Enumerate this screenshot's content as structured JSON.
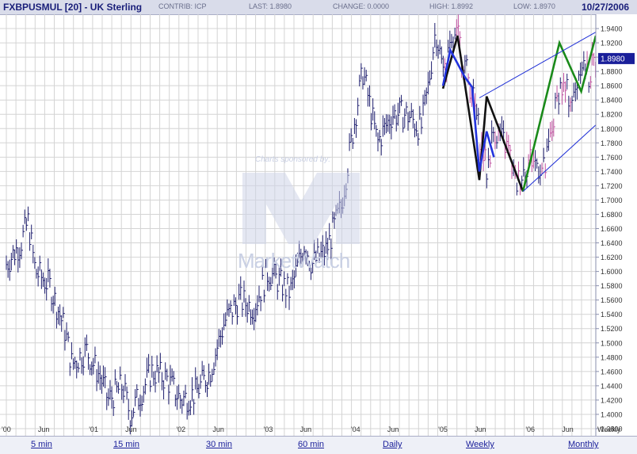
{
  "header": {
    "symbol": "FXBPUSMUL [20] - UK Sterling",
    "contrib": "CONTRIB: ICP",
    "last": "LAST: 1.8980",
    "change": "CHANGE: 0.0000",
    "high": "HIGH: 1.8992",
    "low": "LOW: 1.8970",
    "date": "10/27/2006"
  },
  "watermark": {
    "sponsor_text": "Charts sponsored by:",
    "brand_text": "MarketWatch"
  },
  "footer": {
    "links": [
      "5 min",
      "15 min",
      "30 min",
      "60 min",
      "Daily",
      "Weekly",
      "Monthly"
    ],
    "interval_label": "Weekly"
  },
  "colors": {
    "price_bars": "#1e1e6e",
    "grid": "#d4d4d4",
    "channel": "#1a2bd6",
    "current_price_box": "#1a1f9a",
    "pattern_black": "#111111",
    "pattern_blue": "#2233dd",
    "pattern_pink": "#c050a0",
    "pattern_green": "#1a8a1a"
  },
  "chart_data": {
    "type": "ohlc-bar",
    "title": "FXBPUSMUL [20] - UK Sterling",
    "frequency": "Weekly",
    "ylim": [
      1.37,
      1.96
    ],
    "y_ticks": [
      "1.9400",
      "1.9200",
      "1.9000",
      "1.8800",
      "1.8600",
      "1.8400",
      "1.8200",
      "1.8000",
      "1.7800",
      "1.7600",
      "1.7400",
      "1.7200",
      "1.7000",
      "1.6800",
      "1.6600",
      "1.6400",
      "1.6200",
      "1.6000",
      "1.5800",
      "1.5600",
      "1.5400",
      "1.5200",
      "1.5000",
      "1.4800",
      "1.4600",
      "1.4400",
      "1.4200",
      "1.4000",
      "1.3800"
    ],
    "x_ticks": [
      "'00",
      "Jun",
      "'01",
      "Jun",
      "'02",
      "Jun",
      "'03",
      "Jun",
      "'04",
      "Jun",
      "'05",
      "Jun",
      "'06",
      "Jun"
    ],
    "current_value": "1.8980",
    "price_path": [
      [
        "2000-01",
        1.61
      ],
      [
        "2000-03",
        1.64
      ],
      [
        "2000-04",
        1.67
      ],
      [
        "2000-05",
        1.6
      ],
      [
        "2000-07",
        1.58
      ],
      [
        "2000-09",
        1.52
      ],
      [
        "2000-10",
        1.47
      ],
      [
        "2000-12",
        1.49
      ],
      [
        "2001-02",
        1.45
      ],
      [
        "2001-03",
        1.42
      ],
      [
        "2001-05",
        1.44
      ],
      [
        "2001-06",
        1.4
      ],
      [
        "2001-07",
        1.42
      ],
      [
        "2001-09",
        1.46
      ],
      [
        "2001-11",
        1.45
      ],
      [
        "2002-01",
        1.42
      ],
      [
        "2002-03",
        1.43
      ],
      [
        "2002-05",
        1.46
      ],
      [
        "2002-07",
        1.53
      ],
      [
        "2002-09",
        1.56
      ],
      [
        "2002-11",
        1.55
      ],
      [
        "2003-01",
        1.6
      ],
      [
        "2003-03",
        1.58
      ],
      [
        "2003-04",
        1.57
      ],
      [
        "2003-06",
        1.64
      ],
      [
        "2003-07",
        1.61
      ],
      [
        "2003-09",
        1.63
      ],
      [
        "2003-11",
        1.69
      ],
      [
        "2004-01",
        1.82
      ],
      [
        "2004-02",
        1.88
      ],
      [
        "2004-04",
        1.78
      ],
      [
        "2004-06",
        1.82
      ],
      [
        "2004-08",
        1.82
      ],
      [
        "2004-10",
        1.8
      ],
      [
        "2004-11",
        1.86
      ],
      [
        "2004-12",
        1.94
      ],
      [
        "2005-01",
        1.88
      ],
      [
        "2005-03",
        1.93
      ],
      [
        "2005-05",
        1.85
      ],
      [
        "2005-07",
        1.74
      ],
      [
        "2005-08",
        1.8
      ],
      [
        "2005-10",
        1.77
      ],
      [
        "2005-11",
        1.72
      ],
      [
        "2006-01",
        1.76
      ],
      [
        "2006-03",
        1.74
      ],
      [
        "2006-05",
        1.86
      ],
      [
        "2006-07",
        1.84
      ],
      [
        "2006-08",
        1.9
      ],
      [
        "2006-09",
        1.87
      ],
      [
        "2006-10",
        1.9
      ]
    ],
    "trend_channel": {
      "upper": [
        [
          "2005-06",
          1.843
        ],
        [
          "2006-10",
          1.935
        ]
      ],
      "lower": [
        [
          "2005-12",
          1.712
        ],
        [
          "2006-10",
          1.805
        ]
      ]
    },
    "pattern_lines": [
      {
        "color": "black",
        "points": [
          [
            "2005-01",
            1.856
          ],
          [
            "2005-03",
            1.93
          ],
          [
            "2005-06",
            1.728
          ],
          [
            "2005-07",
            1.845
          ],
          [
            "2005-12",
            1.712
          ]
        ]
      },
      {
        "color": "blue",
        "points": [
          [
            "2005-01",
            1.86
          ],
          [
            "2005-02",
            1.91
          ],
          [
            "2005-04",
            1.872
          ],
          [
            "2005-05",
            1.858
          ],
          [
            "2005-06",
            1.74
          ],
          [
            "2005-07",
            1.796
          ],
          [
            "2005-08",
            1.76
          ]
        ]
      },
      {
        "color": "green",
        "points": [
          [
            "2005-12",
            1.712
          ],
          [
            "2006-05",
            1.92
          ],
          [
            "2006-08",
            1.852
          ],
          [
            "2006-10",
            1.93
          ]
        ]
      }
    ]
  }
}
